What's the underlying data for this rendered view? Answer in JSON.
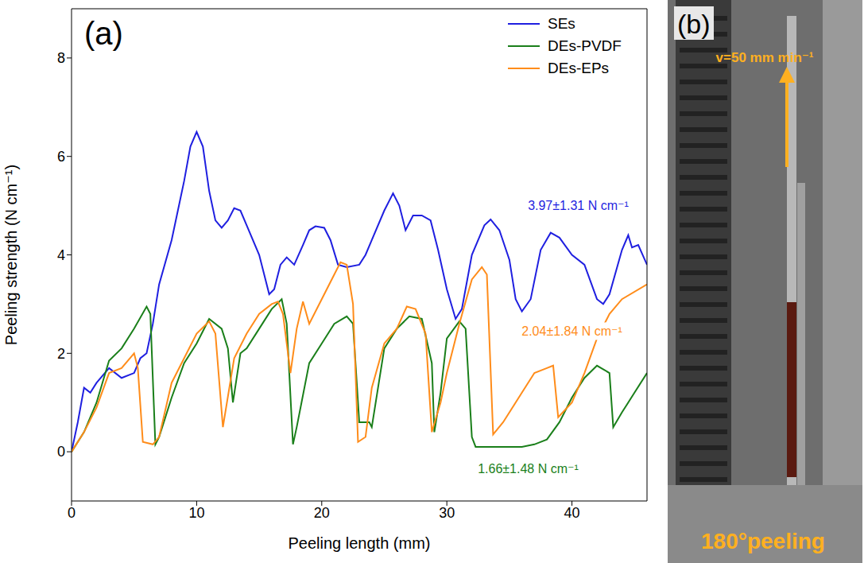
{
  "chart_data": {
    "type": "line",
    "panel": "(a)",
    "x_label": "Peeling length (mm)",
    "y_label": "Peeling strength (N cm⁻¹)",
    "xlim": [
      0,
      46
    ],
    "xticks": [
      0,
      10,
      20,
      30,
      40
    ],
    "ylim": [
      -1,
      9
    ],
    "yticks": [
      0,
      2,
      4,
      6,
      8
    ],
    "legend": "upper right",
    "series": [
      {
        "name": "SEs",
        "color": "#1f1fe0",
        "annotation": "3.97±1.31 N cm⁻¹",
        "x": [
          0,
          0.5,
          1,
          1.5,
          2,
          3,
          4,
          5,
          5.5,
          6,
          6.5,
          7,
          8,
          9,
          9.5,
          10,
          10.5,
          11,
          11.5,
          12,
          12.5,
          13,
          13.5,
          14,
          15,
          15.8,
          16.2,
          16.7,
          17.2,
          17.8,
          18.5,
          19,
          19.5,
          20.2,
          20.7,
          21.3,
          22,
          23,
          23.5,
          24,
          25,
          25.7,
          26.2,
          26.7,
          27.3,
          28,
          28.7,
          29.3,
          30,
          30.7,
          31.2,
          32,
          33,
          33.5,
          34.2,
          35,
          35.5,
          36,
          36.7,
          37.5,
          38.3,
          39,
          40,
          41,
          42,
          42.5,
          43,
          44,
          44.5,
          44.8,
          45.3,
          46
        ],
        "values": [
          0,
          0.6,
          1.3,
          1.2,
          1.4,
          1.7,
          1.5,
          1.6,
          1.9,
          2.0,
          2.6,
          3.4,
          4.3,
          5.5,
          6.2,
          6.5,
          6.2,
          5.3,
          4.7,
          4.55,
          4.7,
          4.95,
          4.9,
          4.6,
          4.0,
          3.2,
          3.3,
          3.8,
          3.95,
          3.8,
          4.2,
          4.5,
          4.58,
          4.55,
          4.3,
          3.8,
          3.75,
          3.8,
          4.0,
          4.3,
          4.9,
          5.25,
          5.0,
          4.5,
          4.8,
          4.8,
          4.7,
          4.1,
          3.3,
          2.7,
          2.9,
          4.0,
          4.6,
          4.72,
          4.5,
          3.9,
          3.1,
          2.85,
          3.1,
          4.1,
          4.45,
          4.35,
          4.0,
          3.8,
          3.1,
          3.0,
          3.2,
          4.1,
          4.4,
          4.15,
          4.2,
          3.8
        ]
      },
      {
        "name": "DEs-PVDF",
        "color": "#1a7f1a",
        "annotation": "1.66±1.48 N cm⁻¹",
        "x": [
          0,
          1,
          2,
          3,
          4,
          5,
          6,
          6.3,
          6.7,
          7,
          8,
          9,
          10,
          11,
          12,
          12.5,
          12.9,
          13.5,
          14,
          15,
          16,
          16.8,
          17.2,
          17.7,
          18,
          19,
          20,
          21,
          22,
          22.5,
          23,
          23.8,
          24,
          24.5,
          25,
          26,
          27,
          28,
          28.8,
          29,
          29.5,
          30,
          31,
          31.5,
          32,
          32.3,
          34,
          36,
          37,
          38,
          39,
          40,
          41,
          42,
          43,
          43.3,
          44,
          45,
          46
        ],
        "values": [
          0,
          0.4,
          1.0,
          1.85,
          2.1,
          2.5,
          2.95,
          2.8,
          0.15,
          0.3,
          1.1,
          1.8,
          2.2,
          2.7,
          2.5,
          2.1,
          1.0,
          2.0,
          2.1,
          2.5,
          2.9,
          3.1,
          2.6,
          0.15,
          0.5,
          1.8,
          2.2,
          2.6,
          2.75,
          2.6,
          0.6,
          0.6,
          0.5,
          1.3,
          2.1,
          2.5,
          2.75,
          2.7,
          1.8,
          0.4,
          1.2,
          2.3,
          2.65,
          2.5,
          0.3,
          0.1,
          0.1,
          0.1,
          0.15,
          0.25,
          0.6,
          1.1,
          1.5,
          1.75,
          1.6,
          0.5,
          0.8,
          1.2,
          1.6
        ]
      },
      {
        "name": "DEs-EPs",
        "color": "#ff8c1a",
        "annotation": "2.04±1.84 N cm⁻¹",
        "x": [
          0,
          1,
          2,
          3,
          4,
          5,
          5.3,
          5.7,
          6.5,
          7,
          8,
          9,
          10,
          11,
          11.5,
          12.1,
          13,
          14,
          15,
          16,
          16.5,
          16.9,
          17.5,
          18,
          18.5,
          19,
          20,
          21,
          21.5,
          22,
          22.5,
          22.9,
          23.5,
          24,
          25,
          26,
          26.8,
          27.5,
          28.3,
          28.8,
          29.5,
          30,
          31,
          32,
          32.8,
          33.2,
          33.7,
          34.5,
          36,
          37,
          38,
          38.5,
          38.9,
          40,
          41,
          42,
          43,
          44,
          46
        ],
        "values": [
          0,
          0.4,
          0.9,
          1.6,
          1.7,
          2.0,
          1.7,
          0.2,
          0.15,
          0.3,
          1.4,
          1.9,
          2.4,
          2.65,
          2.4,
          0.5,
          1.9,
          2.4,
          2.8,
          3.0,
          3.05,
          2.8,
          1.6,
          2.5,
          3.05,
          2.6,
          3.1,
          3.6,
          3.85,
          3.8,
          3.0,
          0.2,
          0.3,
          1.3,
          2.2,
          2.5,
          2.95,
          2.9,
          2.4,
          0.4,
          1.0,
          1.6,
          2.6,
          3.5,
          3.75,
          3.6,
          0.35,
          0.6,
          1.2,
          1.6,
          1.7,
          1.75,
          0.7,
          1.0,
          1.6,
          2.3,
          2.8,
          3.1,
          3.4
        ]
      }
    ]
  },
  "photo": {
    "panel": "(b)",
    "speed_label": "v=50 mm min⁻¹",
    "mode_label": "180°peeling"
  }
}
